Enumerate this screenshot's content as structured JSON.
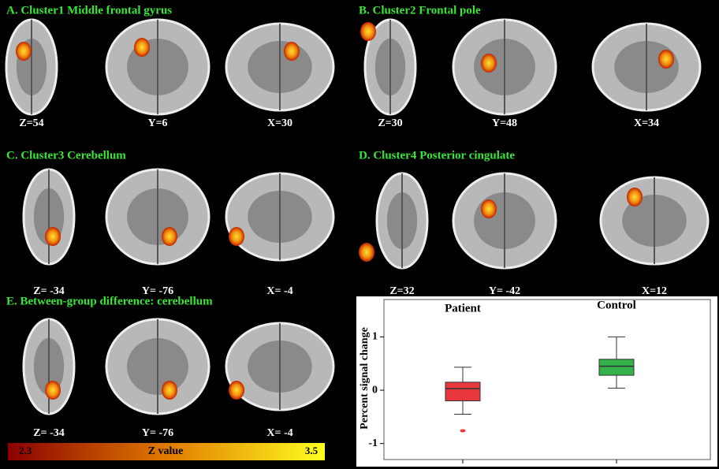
{
  "panels": [
    {
      "title": "A. Cluster1 Middle frontal gyrus",
      "slices": [
        "Z=54",
        "Y=6",
        "X=30"
      ]
    },
    {
      "title": "B. Cluster2 Frontal pole",
      "slices": [
        "Z=30",
        "Y=48",
        "X=34"
      ]
    },
    {
      "title": "C. Cluster3 Cerebellum",
      "slices": [
        "Z= -34",
        "Y= -76",
        "X= -4"
      ]
    },
    {
      "title": "D. Cluster4 Posterior cingulate",
      "slices": [
        "Z=32",
        "Y= -42",
        "X=12"
      ]
    },
    {
      "title": "E. Between-group difference: cerebellum",
      "slices": [
        "Z= -34",
        "Y= -76",
        "X= -4"
      ]
    }
  ],
  "colorbar": {
    "min_label": "2.3",
    "title": "Z value",
    "max_label": "3.5"
  },
  "chart_data": {
    "type": "box",
    "ylabel": "Percent signal change",
    "categories": [
      "Patient",
      "Control"
    ],
    "colors": [
      "#e8383d",
      "#33b24a"
    ],
    "boxes": [
      {
        "low": -0.45,
        "q1": -0.2,
        "median": 0.03,
        "q3": 0.15,
        "high": 0.43,
        "outliers": [
          -0.76
        ]
      },
      {
        "low": 0.04,
        "q1": 0.28,
        "median": 0.45,
        "q3": 0.58,
        "high": 1.0,
        "outliers": []
      }
    ],
    "ylim": [
      -1.3,
      1.7
    ],
    "yticks": [
      -1,
      0,
      1
    ]
  }
}
